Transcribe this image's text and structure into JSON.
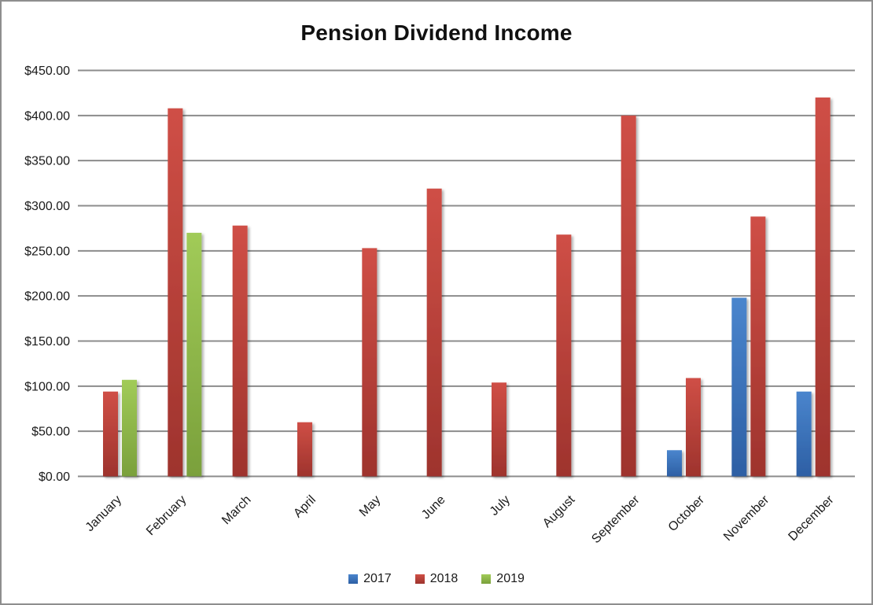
{
  "window": {
    "background": "#ffffff",
    "border_color": "#8e8e8e"
  },
  "chart_data": {
    "type": "bar",
    "title": "Pension Dividend Income",
    "xlabel": "",
    "ylabel": "",
    "categories": [
      "January",
      "February",
      "March",
      "April",
      "May",
      "June",
      "July",
      "August",
      "September",
      "October",
      "November",
      "December"
    ],
    "series": [
      {
        "name": "2017",
        "color": "#3a76c0",
        "color_top": "#4a85cd",
        "color_bottom": "#2d5fa4",
        "values": [
          null,
          null,
          null,
          null,
          null,
          null,
          null,
          null,
          null,
          29,
          198,
          94
        ]
      },
      {
        "name": "2018",
        "color": "#be3b33",
        "color_top": "#cf4f46",
        "color_bottom": "#9e332d",
        "values": [
          94,
          408,
          278,
          60,
          253,
          319,
          104,
          268,
          400,
          109,
          288,
          420
        ]
      },
      {
        "name": "2019",
        "color": "#8cba41",
        "color_top": "#a1cb58",
        "color_bottom": "#7aa03b",
        "values": [
          107,
          270,
          null,
          null,
          null,
          null,
          null,
          null,
          null,
          null,
          null,
          null
        ]
      }
    ],
    "ylim": [
      0,
      450
    ],
    "y_tick_step": 50,
    "y_tick_labels": [
      "$0.00",
      "$50.00",
      "$100.00",
      "$150.00",
      "$200.00",
      "$250.00",
      "$300.00",
      "$350.00",
      "$400.00",
      "$450.00"
    ],
    "grid": true,
    "gridline_color": "#8c8c8c",
    "axis_line_color": "#8c8c8c",
    "legend_position": "bottom",
    "x_label_rotation_deg": -45
  }
}
